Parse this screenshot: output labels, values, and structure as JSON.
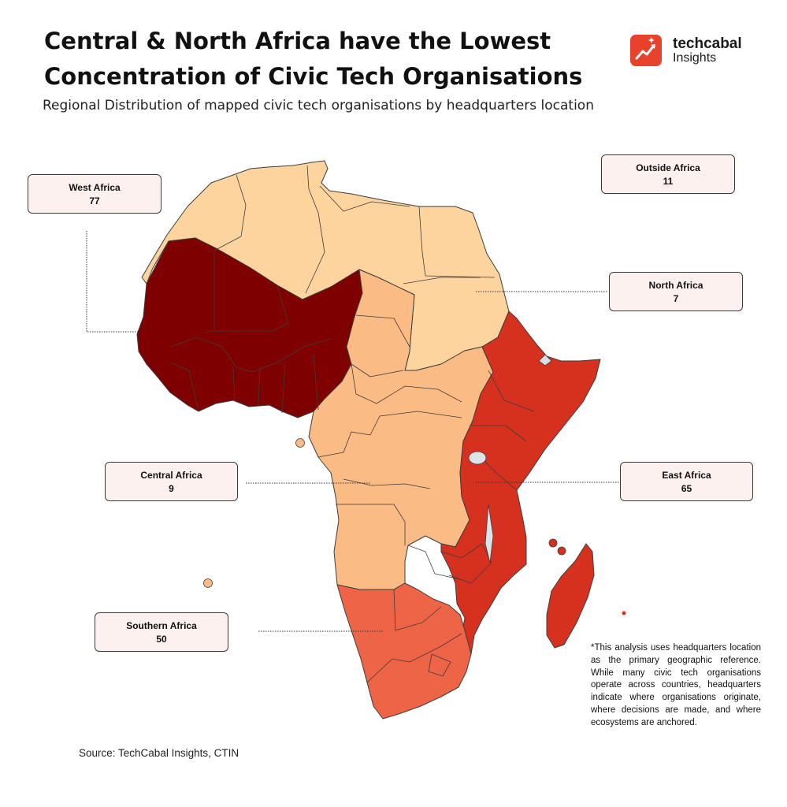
{
  "header": {
    "title": "Central & North Africa have the Lowest Concentration of Civic Tech Organisations",
    "subtitle": "Regional Distribution of mapped civic tech organisations by headquarters location"
  },
  "brand": {
    "name": "techcabal",
    "sub": "Insights",
    "icon": "rising-chart-sparkle-icon",
    "color": "#e8412c"
  },
  "regions": {
    "west": {
      "name": "West Africa",
      "value": "77",
      "color": "#7f0000"
    },
    "outside": {
      "name": "Outside Africa",
      "value": "11"
    },
    "north": {
      "name": "North Africa",
      "value": "7",
      "color": "#fdd49e"
    },
    "central": {
      "name": "Central Africa",
      "value": "9",
      "color": "#fbbb85"
    },
    "east": {
      "name": "East Africa",
      "value": "65",
      "color": "#d6311f"
    },
    "southern": {
      "name": "Southern Africa",
      "value": "50",
      "color": "#ed6446"
    }
  },
  "footnote": "*This analysis uses headquarters location as the primary geographic reference. While many civic tech organisations operate across countries, headquarters indicate where organisations originate, where decisions are made, and where ecosystems are anchored.",
  "source": "Source: TechCabal Insights, CTIN"
}
